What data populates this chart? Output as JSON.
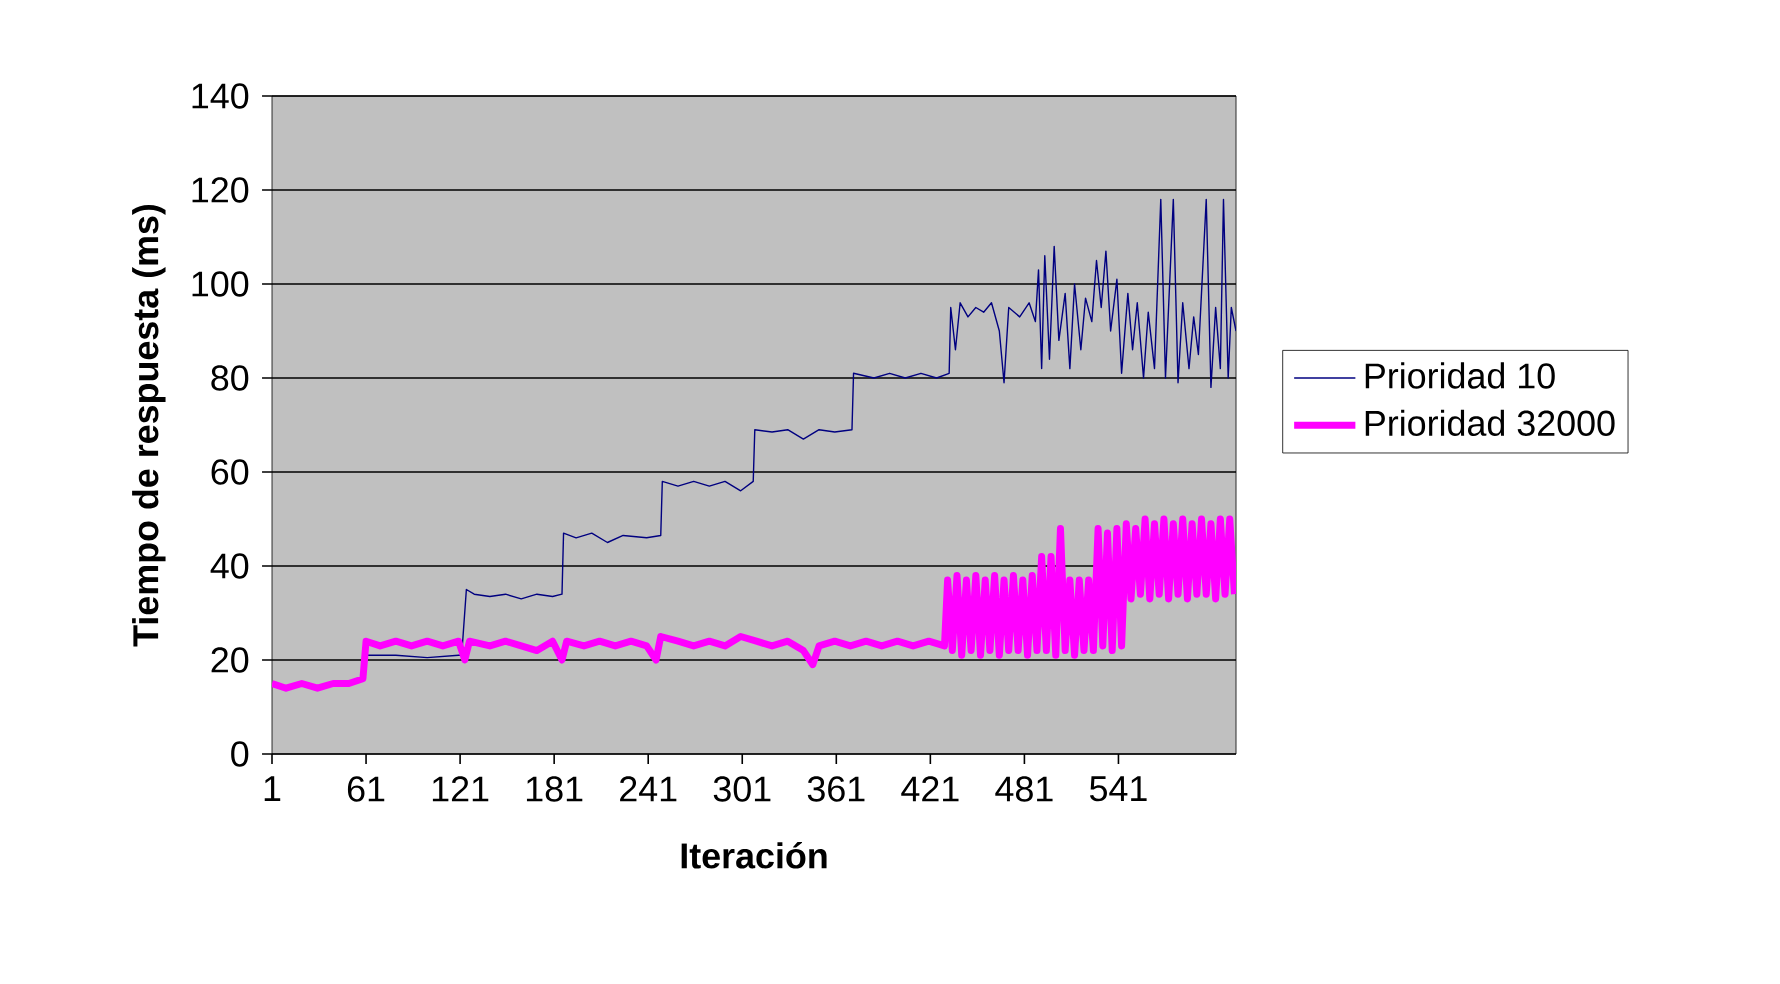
{
  "chart_data": {
    "type": "line",
    "xlabel": "Iteración",
    "ylabel": "Tiempo de respuesta (ms)",
    "xlim": [
      1,
      616
    ],
    "xticks": [
      1,
      61,
      121,
      181,
      241,
      301,
      361,
      421,
      481,
      541
    ],
    "ylim": [
      0,
      140
    ],
    "yticks": [
      0,
      20,
      40,
      60,
      80,
      100,
      120,
      140
    ],
    "grid": "y",
    "legend": "right",
    "line_style": "solid",
    "marker": "none",
    "series": [
      {
        "name": "Prioridad 10",
        "color": "#000080",
        "x": [
          61,
          80,
          100,
          120,
          122,
          125,
          130,
          140,
          150,
          160,
          170,
          180,
          186,
          187,
          195,
          205,
          215,
          225,
          240,
          249,
          250,
          260,
          270,
          280,
          290,
          300,
          308,
          309,
          320,
          330,
          340,
          350,
          360,
          371,
          372,
          385,
          395,
          405,
          415,
          425,
          433,
          434,
          437,
          440,
          445,
          450,
          455,
          460,
          465,
          468,
          471,
          478,
          484,
          488,
          490,
          492,
          494,
          497,
          500,
          503,
          507,
          510,
          513,
          517,
          520,
          524,
          527,
          530,
          533,
          536,
          540,
          543,
          547,
          550,
          553,
          557,
          560,
          564,
          568,
          571,
          576,
          579,
          582,
          586,
          589,
          592,
          597,
          600,
          603,
          606,
          608,
          611,
          613,
          616
        ],
        "values": [
          21,
          21,
          20.5,
          21,
          21,
          35,
          34,
          33.5,
          34,
          33,
          34,
          33.5,
          34,
          47,
          46,
          47,
          45,
          46.5,
          46,
          46.5,
          58,
          57,
          58,
          57,
          58,
          56,
          58,
          69,
          68.5,
          69,
          67,
          69,
          68.5,
          69,
          81,
          80,
          81,
          80,
          81,
          80,
          81,
          95,
          86,
          96,
          93,
          95,
          94,
          96,
          90,
          79,
          95,
          93,
          96,
          92,
          103,
          82,
          106,
          84,
          108,
          88,
          98,
          82,
          100,
          86,
          97,
          92,
          105,
          95,
          107,
          90,
          101,
          81,
          98,
          86,
          96,
          80,
          94,
          82,
          118,
          80,
          118,
          79,
          96,
          82,
          93,
          85,
          118,
          78,
          95,
          82,
          118,
          80,
          95,
          90
        ]
      },
      {
        "name": "Prioridad 32000",
        "color": "#ff00ff",
        "x": [
          1,
          10,
          20,
          30,
          40,
          50,
          59,
          61,
          70,
          80,
          90,
          100,
          110,
          120,
          124,
          127,
          140,
          150,
          160,
          170,
          180,
          186,
          189,
          200,
          210,
          220,
          230,
          240,
          246,
          249,
          260,
          270,
          280,
          290,
          300,
          310,
          320,
          330,
          340,
          346,
          350,
          360,
          370,
          380,
          390,
          400,
          410,
          420,
          430,
          432,
          435,
          438,
          441,
          444,
          447,
          450,
          453,
          456,
          459,
          462,
          465,
          468,
          471,
          474,
          477,
          480,
          483,
          486,
          489,
          492,
          495,
          498,
          501,
          504,
          507,
          510,
          513,
          516,
          519,
          522,
          525,
          528,
          531,
          534,
          537,
          540,
          543,
          546,
          549,
          552,
          555,
          558,
          561,
          564,
          567,
          570,
          573,
          576,
          579,
          582,
          585,
          588,
          591,
          594,
          597,
          600,
          603,
          606,
          609,
          612,
          615
        ],
        "values": [
          15,
          14,
          15,
          14,
          15,
          15,
          16,
          24,
          23,
          24,
          23,
          24,
          23,
          24,
          20,
          24,
          23,
          24,
          23,
          22,
          24,
          20,
          24,
          23,
          24,
          23,
          24,
          23,
          20,
          25,
          24,
          23,
          24,
          23,
          25,
          24,
          23,
          24,
          22,
          19,
          23,
          24,
          23,
          24,
          23,
          24,
          23,
          24,
          23,
          37,
          22,
          38,
          21,
          37,
          22,
          38,
          21,
          37,
          22,
          38,
          21,
          37,
          22,
          38,
          22,
          37,
          21,
          38,
          22,
          42,
          22,
          42,
          21,
          48,
          22,
          37,
          21,
          37,
          22,
          37,
          22,
          48,
          23,
          47,
          22,
          48,
          23,
          49,
          33,
          48,
          34,
          50,
          33,
          49,
          34,
          50,
          33,
          49,
          34,
          50,
          33,
          49,
          34,
          50,
          34,
          49,
          33,
          50,
          34,
          50,
          34
        ]
      }
    ]
  }
}
